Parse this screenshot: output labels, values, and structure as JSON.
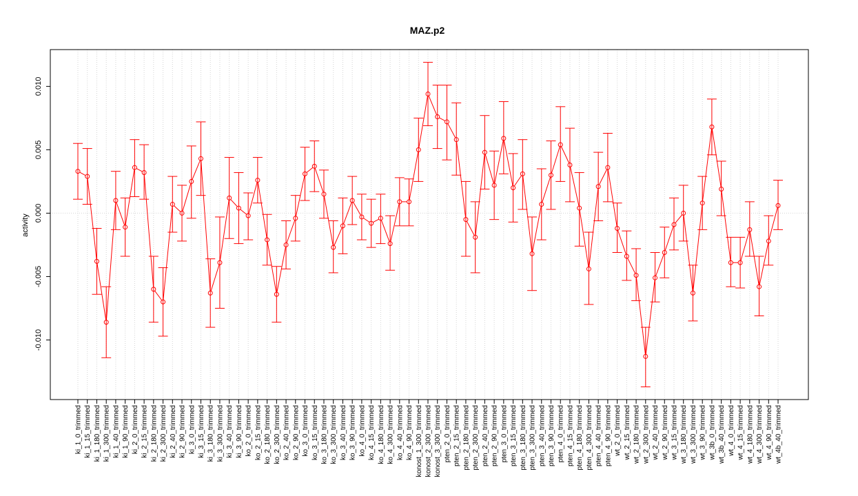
{
  "chart_data": {
    "type": "line",
    "title": "MAZ.p2",
    "xlabel": "",
    "ylabel": "activity",
    "ylim": [
      -0.0147,
      0.0129
    ],
    "yticks": [
      -0.01,
      -0.005,
      0.0,
      0.005,
      0.01
    ],
    "ytick_labels": [
      "-0.010",
      "-0.005",
      "0.000",
      "0.005",
      "0.010"
    ],
    "grid": true,
    "zero_line": true,
    "error_bars": true,
    "line_color": "#ff0000",
    "categories": [
      "ki_1_0_trimmed",
      "ki_1_15_trimmed",
      "ki_1_180_trimmed",
      "ki_1_300_trimmed",
      "ki_1_40_trimmed",
      "ki_1_90_trimmed",
      "ki_2_0_trimmed",
      "ki_2_15_trimmed",
      "ki_2_180_trimmed",
      "ki_2_300_trimmed",
      "ki_2_40_trimmed",
      "ki_2_90_trimmed",
      "ki_3_0_trimmed",
      "ki_3_15_trimmed",
      "ki_3_180_trimmed",
      "ki_3_300_trimmed",
      "ki_3_40_trimmed",
      "ki_3_90_trimmed",
      "ko_2_0_trimmed",
      "ko_2_15_trimmed",
      "ko_2_180_trimmed",
      "ko_2_300_trimmed",
      "ko_2_40_trimmed",
      "ko_2_90_trimmed",
      "ko_3_0_trimmed",
      "ko_3_15_trimmed",
      "ko_3_180_trimmed",
      "ko_3_300_trimmed",
      "ko_3_40_trimmed",
      "ko_3_90_trimmed",
      "ko_4_0_trimmed",
      "ko_4_15_trimmed",
      "ko_4_180_trimmed",
      "ko_4_300_trimmed",
      "ko_4_40_trimmed",
      "ko_4_90_trimmed",
      "konost_1_300_trimmed",
      "konost_2_300_trimmed",
      "konost_3_300_trimmed",
      "pten_2_0_trimmed",
      "pten_2_15_trimmed",
      "pten_2_180_trimmed",
      "pten_2_300_trimmed",
      "pten_2_40_trimmed",
      "pten_2_90_trimmed",
      "pten_3_0_trimmed",
      "pten_3_15_trimmed",
      "pten_3_180_trimmed",
      "pten_3_300_trimmed",
      "pten_3_40_trimmed",
      "pten_3_90_trimmed",
      "pten_4_0_trimmed",
      "pten_4_15_trimmed",
      "pten_4_180_trimmed",
      "pten_4_300_trimmed",
      "pten_4_40_trimmed",
      "pten_4_90_trimmed",
      "wt_2_0_trimmed",
      "wt_2_15_trimmed",
      "wt_2_180_trimmed",
      "wt_2_300_trimmed",
      "wt_2_40_trimmed",
      "wt_2_90_trimmed",
      "wt_3_15_trimmed",
      "wt_3_180_trimmed",
      "wt_3_300_trimmed",
      "wt_3_90_trimmed",
      "wt_3b_0_trimmed",
      "wt_3b_40_trimmed",
      "wt_4_0_trimmed",
      "wt_4_15_trimmed",
      "wt_4_180_trimmed",
      "wt_4_300_trimmed",
      "wt_4_90_trimmed",
      "wt_4b_40_trimmed"
    ],
    "values": [
      0.0033,
      0.0029,
      -0.0038,
      -0.0086,
      0.001,
      -0.0011,
      0.0036,
      0.0032,
      -0.006,
      -0.007,
      0.0007,
      0.0,
      0.0025,
      0.0043,
      -0.0063,
      -0.0039,
      0.0012,
      0.0004,
      -0.0002,
      0.0026,
      -0.0021,
      -0.0064,
      -0.0025,
      -0.0004,
      0.0031,
      0.0037,
      0.0015,
      -0.0027,
      -0.001,
      0.001,
      -0.0003,
      -0.0008,
      -0.0004,
      -0.0024,
      0.0009,
      0.0009,
      0.005,
      0.0094,
      0.0076,
      0.0072,
      0.0058,
      -0.0005,
      -0.0019,
      0.0048,
      0.0022,
      0.0059,
      0.002,
      0.0031,
      -0.0032,
      0.0007,
      0.003,
      0.0054,
      0.0038,
      0.0004,
      -0.0044,
      0.0021,
      0.0036,
      -0.0012,
      -0.0034,
      -0.0049,
      -0.0113,
      -0.0051,
      -0.0031,
      -0.0009,
      0.0,
      -0.0063,
      0.0008,
      0.0068,
      0.0019,
      -0.0039,
      -0.0039,
      -0.0013,
      -0.0058,
      -0.0022,
      0.0006
    ],
    "lower": [
      0.0011,
      0.0007,
      -0.0064,
      -0.0114,
      -0.0013,
      -0.0034,
      0.0013,
      0.0011,
      -0.0086,
      -0.0097,
      -0.0015,
      -0.0022,
      -0.0004,
      0.0014,
      -0.009,
      -0.0075,
      -0.002,
      -0.0024,
      -0.0021,
      0.0008,
      -0.0041,
      -0.0086,
      -0.0044,
      -0.0022,
      0.001,
      0.0017,
      -0.0004,
      -0.0047,
      -0.0032,
      -0.0009,
      -0.0021,
      -0.0027,
      -0.0024,
      -0.0045,
      -0.001,
      -0.001,
      0.0025,
      0.0069,
      0.0051,
      0.0042,
      0.003,
      -0.0034,
      -0.0047,
      0.0019,
      -0.0005,
      0.0031,
      -0.0007,
      0.0003,
      -0.0061,
      -0.0021,
      0.0003,
      0.0025,
      0.0009,
      -0.0026,
      -0.0072,
      -0.0006,
      0.0009,
      -0.0031,
      -0.0053,
      -0.0069,
      -0.0137,
      -0.007,
      -0.0051,
      -0.0029,
      -0.0022,
      -0.0085,
      -0.0013,
      0.0046,
      -0.0002,
      -0.0058,
      -0.0059,
      -0.0034,
      -0.0081,
      -0.0041,
      -0.0013
    ],
    "upper": [
      0.0055,
      0.0051,
      -0.0012,
      -0.0058,
      0.0033,
      0.0012,
      0.0058,
      0.0054,
      -0.0034,
      -0.0043,
      0.0029,
      0.0022,
      0.0053,
      0.0072,
      -0.0036,
      -0.0003,
      0.0044,
      0.0032,
      0.0016,
      0.0044,
      -0.0001,
      -0.0042,
      -0.0006,
      0.0014,
      0.0052,
      0.0057,
      0.0034,
      -0.0006,
      0.0012,
      0.0029,
      0.0015,
      0.0011,
      0.0015,
      -0.0002,
      0.0028,
      0.0027,
      0.0075,
      0.0119,
      0.0101,
      0.0101,
      0.0087,
      0.0025,
      0.0009,
      0.0077,
      0.0049,
      0.0088,
      0.0047,
      0.0058,
      -0.0003,
      0.0035,
      0.0057,
      0.0084,
      0.0067,
      0.0032,
      -0.0015,
      0.0048,
      0.0063,
      0.0008,
      -0.0014,
      -0.0028,
      -0.009,
      -0.0031,
      -0.0011,
      0.0012,
      0.0022,
      -0.0041,
      0.0029,
      0.009,
      0.0041,
      -0.0019,
      -0.0019,
      0.0009,
      -0.0034,
      -0.0002,
      0.0026
    ]
  }
}
